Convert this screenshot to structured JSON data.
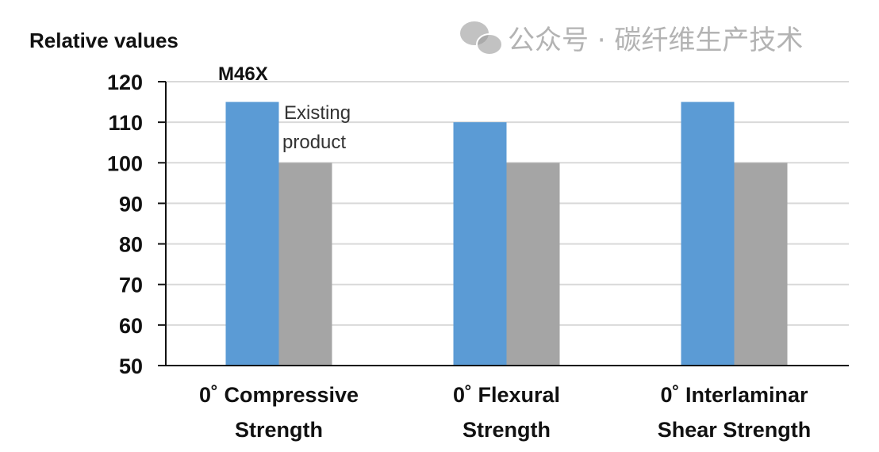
{
  "chart_data": {
    "type": "bar",
    "title": "",
    "ylabel": "Relative values",
    "xlabel": "",
    "ylim": [
      50,
      120
    ],
    "yticks": [
      50,
      60,
      70,
      80,
      90,
      100,
      110,
      120
    ],
    "grid": true,
    "categories": [
      [
        "0˚ Compressive",
        "Strength"
      ],
      [
        "0˚ Flexural",
        "Strength"
      ],
      [
        "0˚ Interlaminar",
        "Shear Strength"
      ]
    ],
    "series": [
      {
        "name": "M46X",
        "values": [
          115,
          110,
          115
        ],
        "color": "#5b9bd5"
      },
      {
        "name": "Existing product",
        "values": [
          100,
          100,
          100
        ],
        "color": "#a5a5a5"
      }
    ],
    "annotations": {
      "series1": "M46X",
      "series2_line1": "Existing",
      "series2_line2": "product"
    }
  },
  "watermark": "公众号 · 碳纤维生产技术"
}
